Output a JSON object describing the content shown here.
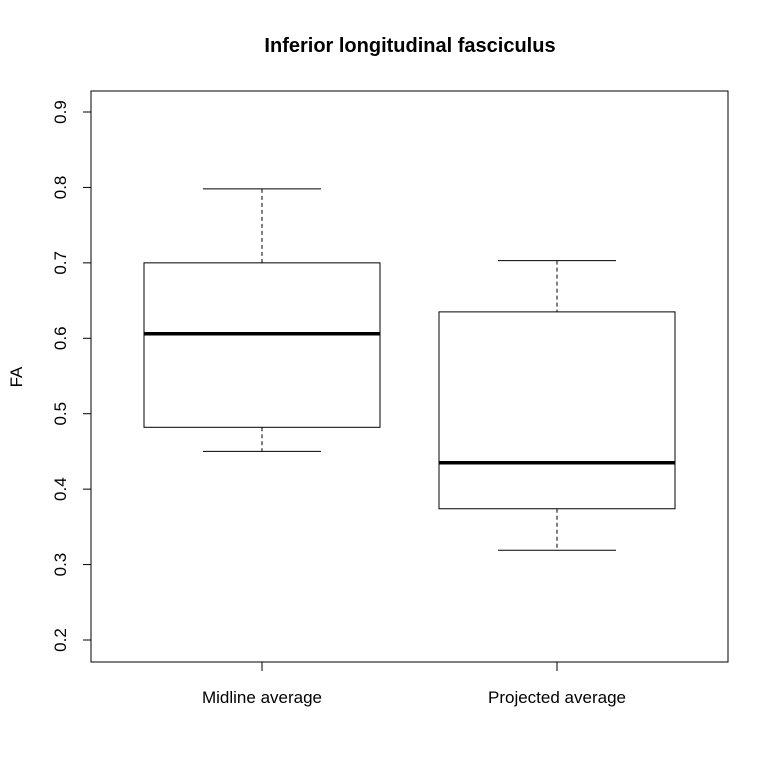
{
  "chart_data": {
    "type": "boxplot",
    "title": "Inferior longitudinal fasciculus",
    "xlabel": "",
    "ylabel": "FA",
    "ylim": [
      0.2,
      0.9
    ],
    "yticks": [
      "0.2",
      "0.3",
      "0.4",
      "0.5",
      "0.6",
      "0.7",
      "0.8",
      "0.9"
    ],
    "categories": [
      "Midline average",
      "Projected average"
    ],
    "boxes": [
      {
        "category": "Midline average",
        "whisker_low": 0.45,
        "q1": 0.482,
        "median": 0.606,
        "q3": 0.7,
        "whisker_high": 0.798
      },
      {
        "category": "Projected average",
        "whisker_low": 0.319,
        "q1": 0.374,
        "median": 0.435,
        "q3": 0.635,
        "whisker_high": 0.703
      }
    ],
    "grid": false,
    "colors": {
      "box_fill": "#ffffff",
      "stroke": "#000000"
    }
  }
}
